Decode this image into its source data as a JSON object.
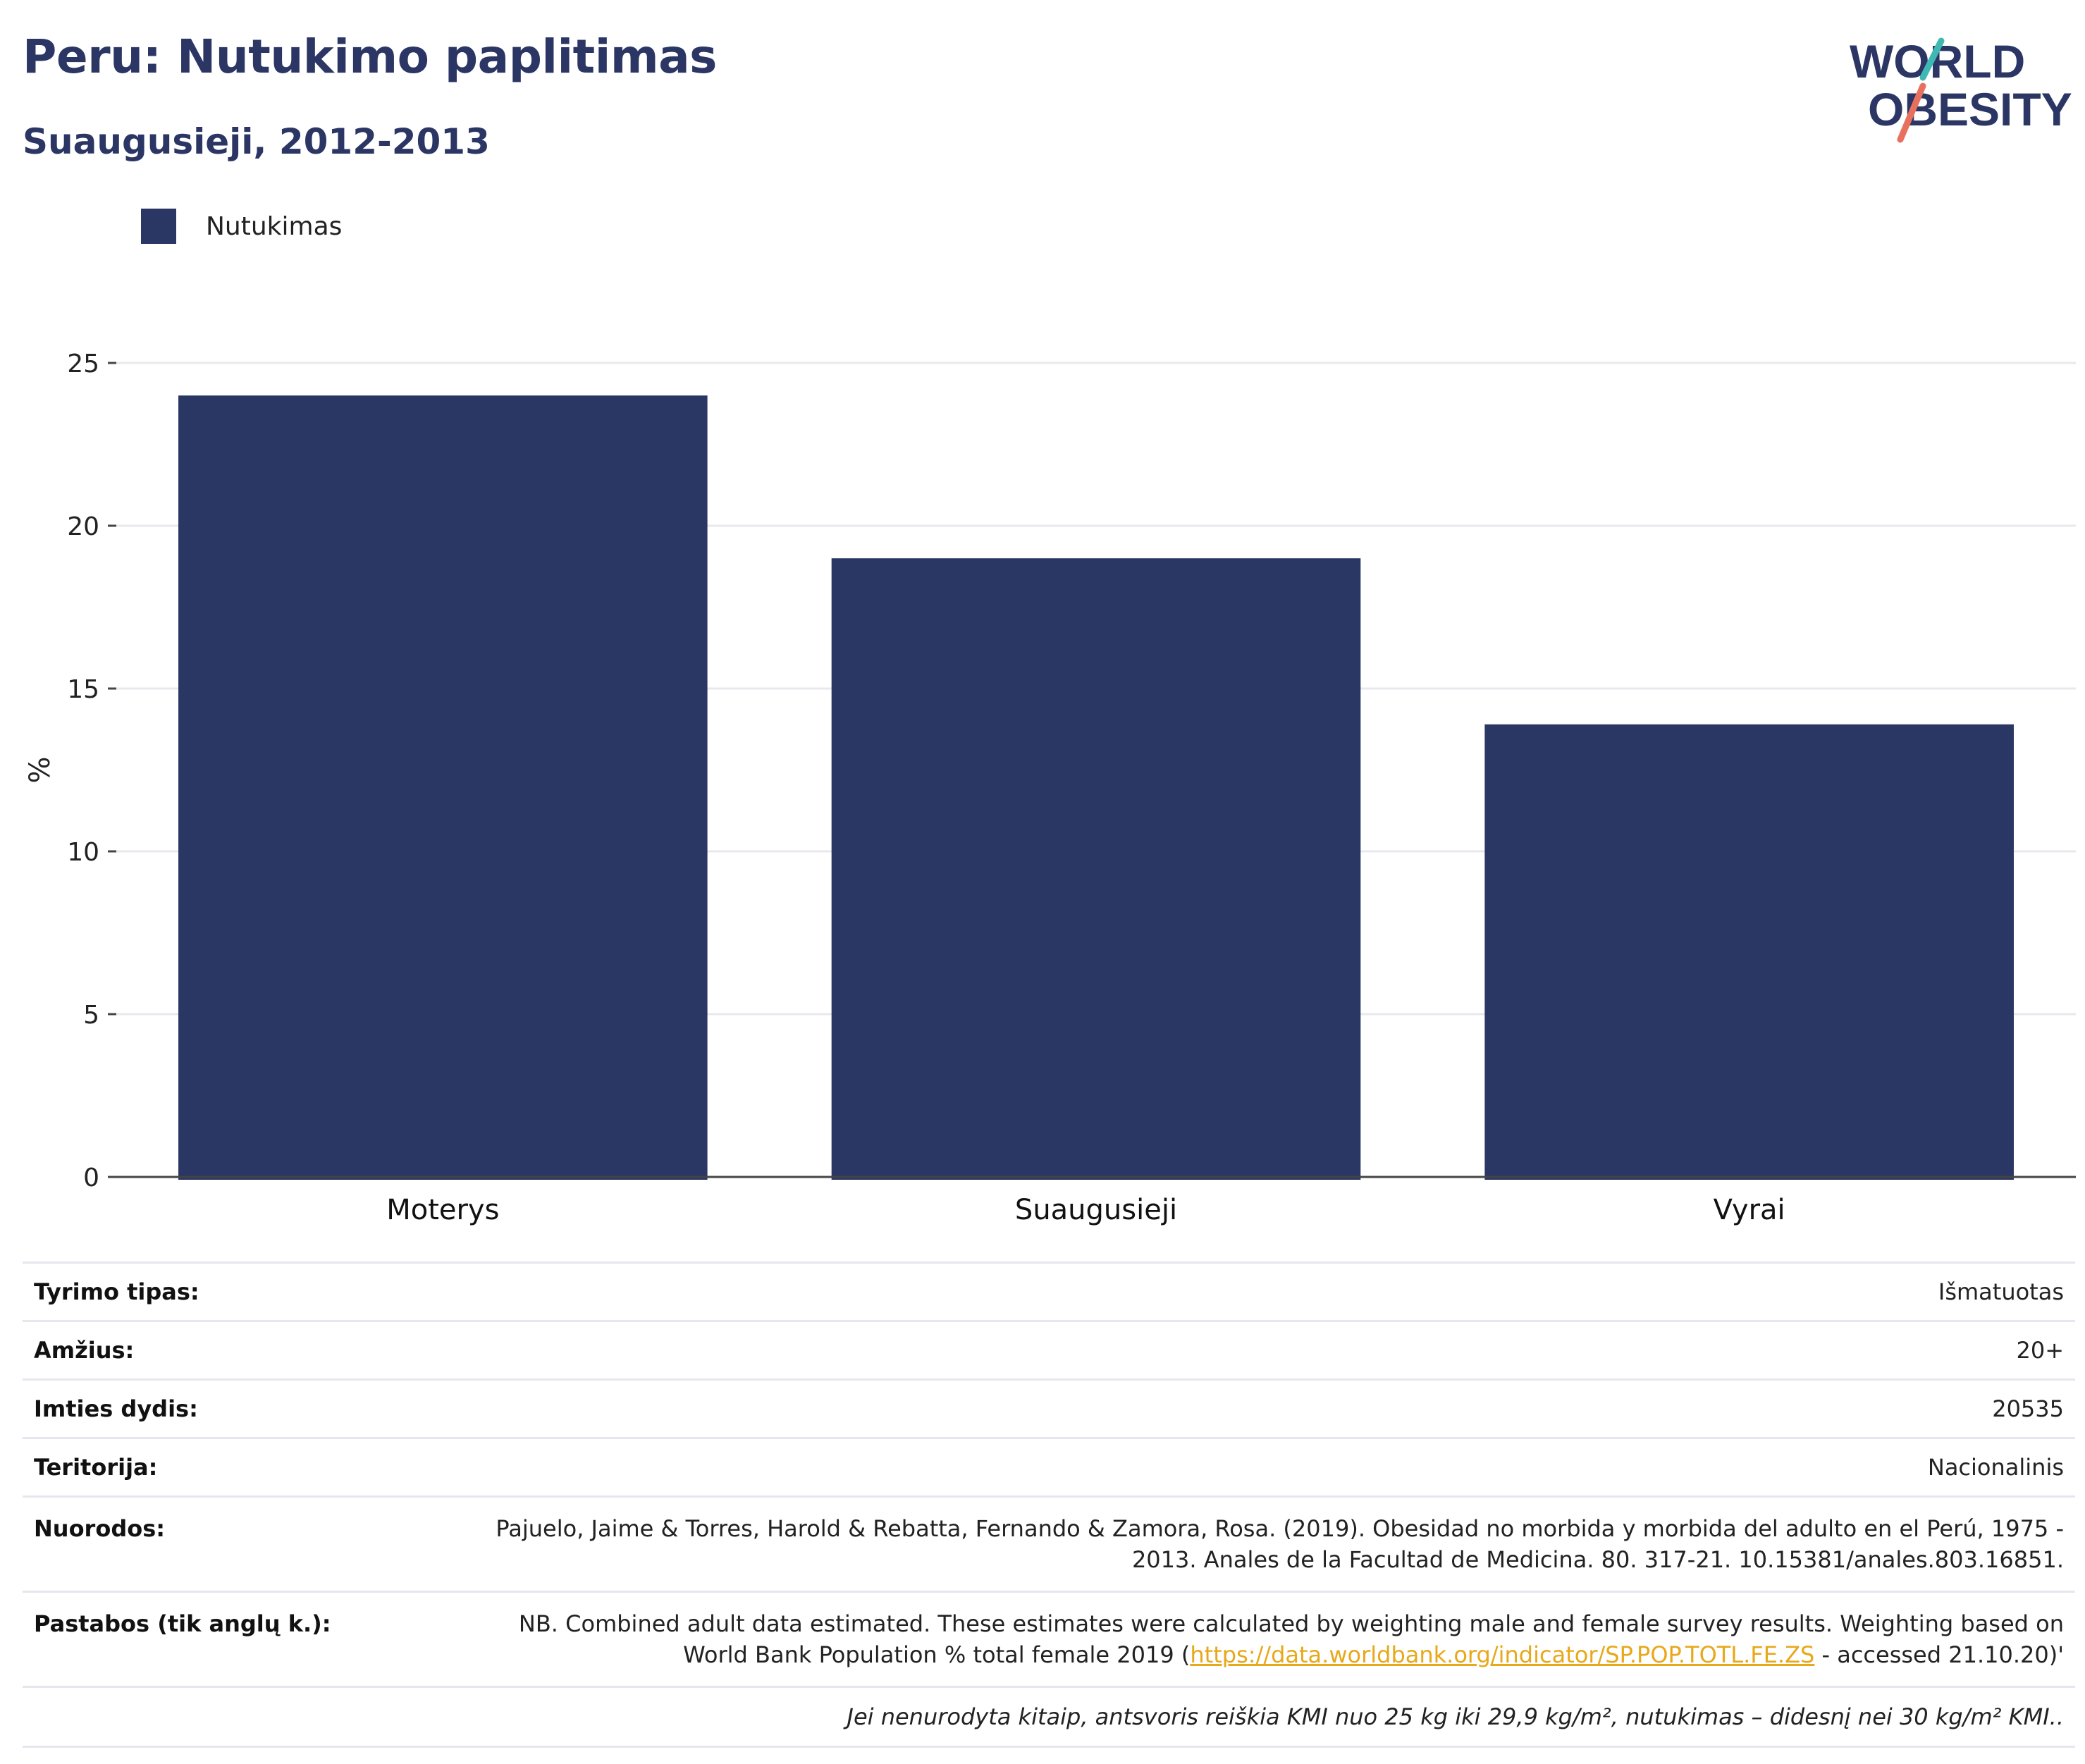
{
  "header": {
    "title": "Peru: Nutukimo paplitimas",
    "subtitle": "Suaugusieji, 2012-2013"
  },
  "logo": {
    "line1": "WORLD",
    "line2": "OBESITY",
    "colors": {
      "text": "#2b3664",
      "slash_top": "#3fb8b3",
      "slash_bottom": "#e8705f"
    }
  },
  "legend": {
    "label": "Nutukimas",
    "color": "#2a3663"
  },
  "chart_data": {
    "type": "bar",
    "categories": [
      "Moterys",
      "Suaugusieji",
      "Vyrai"
    ],
    "series": [
      {
        "name": "Nutukimas",
        "values": [
          24.0,
          19.0,
          13.9
        ],
        "color": "#2a3663"
      }
    ],
    "ylabel": "%",
    "xlabel": "",
    "ylim": [
      0,
      25
    ],
    "yticks": [
      0,
      5,
      10,
      15,
      20,
      25
    ],
    "grid": true,
    "legend_position": "top-left"
  },
  "meta": {
    "rows": [
      {
        "label": "Tyrimo tipas:",
        "value": "Išmatuotas"
      },
      {
        "label": "Amžius:",
        "value": "20+"
      },
      {
        "label": "Imties dydis:",
        "value": "20535"
      },
      {
        "label": "Teritorija:",
        "value": "Nacionalinis"
      },
      {
        "label": "Nuorodos:",
        "value": "Pajuelo, Jaime & Torres, Harold & Rebatta, Fernando & Zamora, Rosa. (2019). Obesidad no morbida y morbida del adulto en el Perú, 1975 - 2013. Anales de la Facultad de Medicina. 80. 317-21. 10.15381/anales.803.16851."
      }
    ],
    "notes": {
      "label": "Pastabos (tik anglų k.):",
      "text_before": "NB. Combined adult data estimated. These estimates were calculated by weighting male and female survey results. Weighting based on World Bank Population % total female 2019 (",
      "link": "https://data.worldbank.org/indicator/SP.POP.TOTL.FE.ZS",
      "text_after": " - accessed 21.10.20)'"
    },
    "footnote": "Jei nenurodyta kitaip, antsvoris reiškia KMI nuo 25 kg iki 29,9 kg/m², nutukimas – didesnį nei 30 kg/m² KMI.."
  }
}
